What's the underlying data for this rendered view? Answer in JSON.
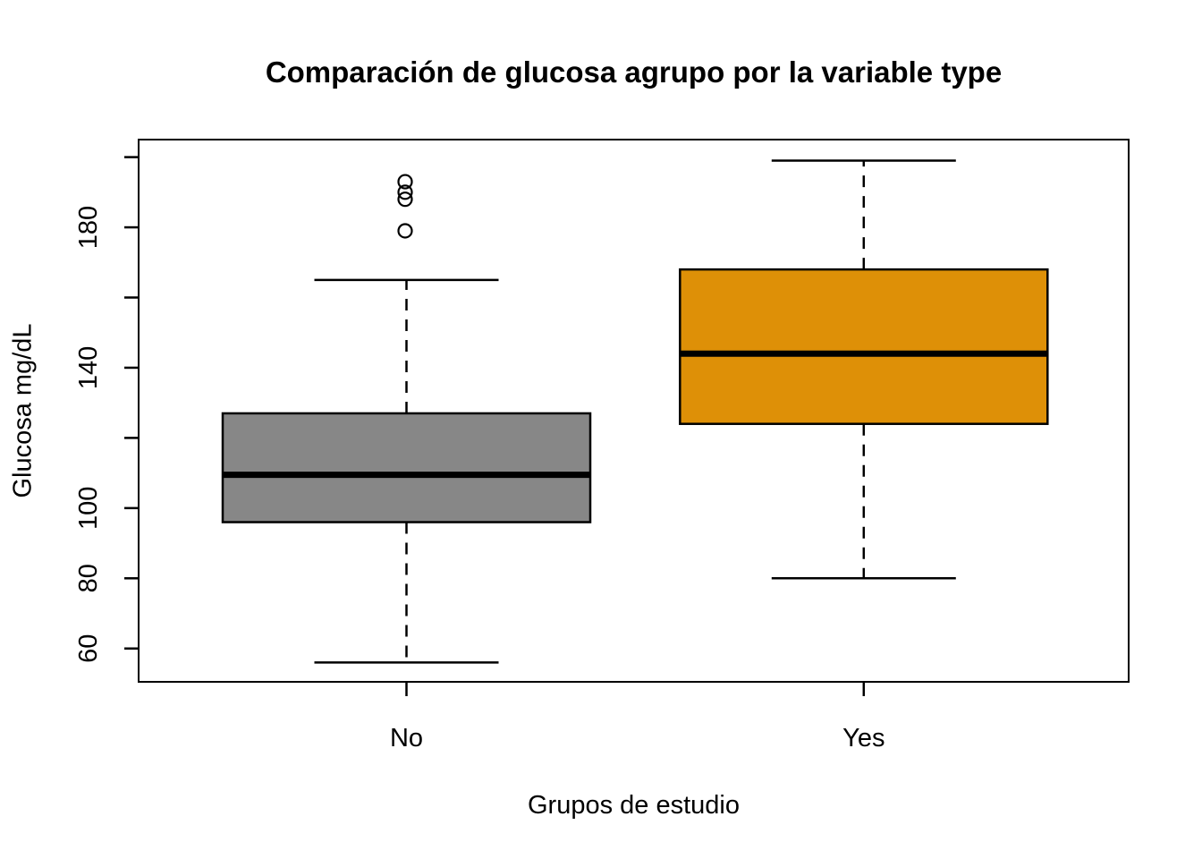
{
  "chart_data": {
    "type": "boxplot",
    "title": "Comparación de glucosa agrupo por la variable type",
    "xlabel": "Grupos de estudio",
    "ylabel": "Glucosa mg/dL",
    "categories": [
      "No",
      "Yes"
    ],
    "series": [
      {
        "name": "No",
        "fill": "#878787",
        "whisker_low": 56,
        "q1": 96,
        "median": 109.5,
        "q3": 127,
        "whisker_high": 165,
        "outliers": [
          179,
          188,
          190,
          193
        ]
      },
      {
        "name": "Yes",
        "fill": "#DE9007",
        "whisker_low": 80,
        "q1": 124,
        "median": 144,
        "q3": 168,
        "whisker_high": 199,
        "outliers": []
      }
    ],
    "ylim": [
      50.5,
      205
    ],
    "y_ticks": [
      {
        "value": 60,
        "label": "60"
      },
      {
        "value": 80,
        "label": "80"
      },
      {
        "value": 100,
        "label": "100"
      },
      {
        "value": 120,
        "label": ""
      },
      {
        "value": 140,
        "label": "140"
      },
      {
        "value": 160,
        "label": ""
      },
      {
        "value": 180,
        "label": "180"
      },
      {
        "value": 200,
        "label": ""
      }
    ],
    "colors": {
      "stroke": "#000000",
      "background": "#FFFFFF"
    },
    "legend": null,
    "grid": false
  }
}
